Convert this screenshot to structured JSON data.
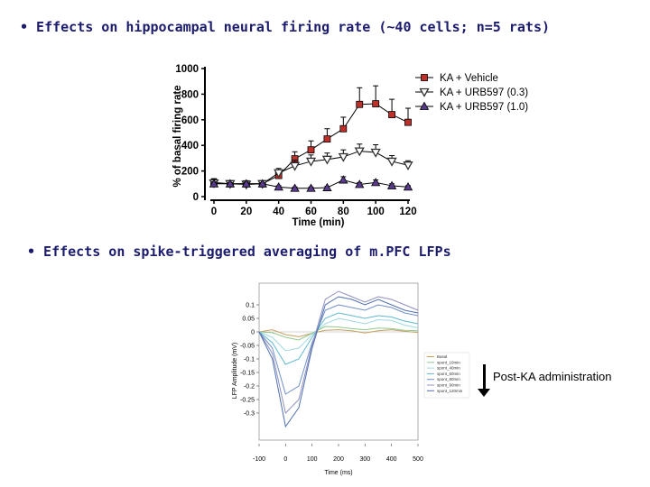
{
  "bullets": {
    "first": "• Effects on hippocampal neural firing rate (~40 cells; n=5 rats)",
    "second": "• Effects on spike-triggered averaging of m.PFC LFPs"
  },
  "annotation": "Post-KA administration",
  "colors": {
    "bullet_text": "#1c1c6e",
    "vehicle": "#c0302a",
    "urb_low": "#333333",
    "urb_high": "#5a3a8a"
  },
  "chart_data": [
    {
      "type": "line",
      "xlabel": "Time (min)",
      "ylabel": "% of basal firing rate",
      "xlim": [
        0,
        120
      ],
      "ylim": [
        0,
        1000
      ],
      "xticks": [
        "0",
        "20",
        "40",
        "60",
        "80",
        "100",
        "120"
      ],
      "yticks": [
        "0",
        "200",
        "400",
        "600",
        "800",
        "1000"
      ],
      "legend_position": "top-right",
      "series": [
        {
          "name": "KA + Vehicle",
          "marker": "square",
          "x": [
            0,
            10,
            20,
            30,
            40,
            50,
            60,
            70,
            80,
            90,
            100,
            110,
            120
          ],
          "y": [
            110,
            100,
            100,
            100,
            165,
            295,
            365,
            450,
            530,
            720,
            725,
            640,
            580
          ],
          "err": [
            30,
            15,
            15,
            15,
            40,
            55,
            70,
            80,
            90,
            130,
            140,
            120,
            110
          ]
        },
        {
          "name": "KA + URB597 (0.3)",
          "marker": "triangle-down",
          "x": [
            0,
            10,
            20,
            30,
            40,
            50,
            60,
            70,
            80,
            90,
            100,
            110,
            120
          ],
          "y": [
            105,
            100,
            95,
            100,
            185,
            240,
            275,
            290,
            310,
            355,
            345,
            275,
            245
          ],
          "err": [
            20,
            10,
            10,
            15,
            35,
            45,
            50,
            50,
            55,
            55,
            60,
            45,
            35
          ]
        },
        {
          "name": "KA + URB597 (1.0)",
          "marker": "triangle-up",
          "x": [
            0,
            10,
            20,
            30,
            40,
            50,
            60,
            70,
            80,
            90,
            100,
            110,
            120
          ],
          "y": [
            100,
            100,
            100,
            100,
            75,
            65,
            65,
            70,
            130,
            95,
            110,
            85,
            75
          ],
          "err": [
            15,
            10,
            10,
            10,
            10,
            10,
            10,
            10,
            25,
            15,
            20,
            15,
            10
          ]
        }
      ]
    },
    {
      "type": "line",
      "xlabel": "Time (ms)",
      "ylabel": "LFP Amplitude (mV)",
      "xlim": [
        -100,
        500
      ],
      "ylim": [
        -0.4,
        0.18
      ],
      "xticks": [
        "-100",
        "0",
        "100",
        "200",
        "300",
        "400",
        "500"
      ],
      "yticks": [
        "0.1",
        "0.05",
        "0",
        "-0.05",
        "-0.1",
        "-0.15",
        "-0.2",
        "-0.25",
        "-0.3"
      ],
      "legend_position": "bottom-right",
      "series": [
        {
          "name": "Basal",
          "color": "#c8a060",
          "x": [
            -100,
            -50,
            0,
            50,
            100,
            150,
            200,
            250,
            300,
            350,
            400,
            450,
            500
          ],
          "y": [
            0.0,
            0.008,
            -0.01,
            -0.018,
            -0.005,
            0.006,
            0.008,
            0.004,
            -0.004,
            0.004,
            0.008,
            0.002,
            -0.002
          ]
        },
        {
          "name": "spont_10min",
          "color": "#90c890",
          "x": [
            -100,
            -50,
            0,
            50,
            100,
            150,
            200,
            250,
            300,
            350,
            400,
            450,
            500
          ],
          "y": [
            0.0,
            -0.003,
            -0.02,
            -0.03,
            -0.005,
            0.02,
            0.018,
            0.012,
            0.008,
            0.014,
            0.012,
            0.006,
            0.004
          ]
        },
        {
          "name": "spont_40min",
          "color": "#a0d8e0",
          "x": [
            -100,
            -50,
            0,
            50,
            100,
            150,
            200,
            250,
            300,
            350,
            400,
            450,
            500
          ],
          "y": [
            0.0,
            -0.02,
            -0.07,
            -0.06,
            -0.01,
            0.03,
            0.05,
            0.04,
            0.03,
            0.045,
            0.042,
            0.025,
            0.015
          ]
        },
        {
          "name": "spont_50min",
          "color": "#60b8d0",
          "x": [
            -100,
            -50,
            0,
            50,
            100,
            150,
            200,
            250,
            300,
            350,
            400,
            450,
            500
          ],
          "y": [
            0.0,
            -0.04,
            -0.12,
            -0.1,
            -0.02,
            0.05,
            0.07,
            0.06,
            0.05,
            0.06,
            0.055,
            0.04,
            0.03
          ]
        },
        {
          "name": "spont_80min",
          "color": "#7090c8",
          "x": [
            -100,
            -50,
            0,
            50,
            100,
            150,
            200,
            250,
            300,
            350,
            400,
            450,
            500
          ],
          "y": [
            0.0,
            -0.06,
            -0.23,
            -0.2,
            -0.04,
            0.08,
            0.1,
            0.09,
            0.08,
            0.1,
            0.09,
            0.07,
            0.06
          ]
        },
        {
          "name": "spont_90min",
          "color": "#9090c0",
          "x": [
            -100,
            -50,
            0,
            50,
            100,
            150,
            200,
            250,
            300,
            350,
            400,
            450,
            500
          ],
          "y": [
            0.0,
            -0.08,
            -0.3,
            -0.25,
            -0.05,
            0.12,
            0.15,
            0.13,
            0.11,
            0.13,
            0.12,
            0.1,
            0.08
          ]
        },
        {
          "name": "spont_120min",
          "color": "#5070b0",
          "x": [
            -100,
            -50,
            0,
            50,
            100,
            150,
            200,
            250,
            300,
            350,
            400,
            450,
            500
          ],
          "y": [
            0.0,
            -0.1,
            -0.35,
            -0.28,
            -0.06,
            0.1,
            0.13,
            0.12,
            0.1,
            0.12,
            0.1,
            0.08,
            0.07
          ]
        }
      ]
    }
  ]
}
